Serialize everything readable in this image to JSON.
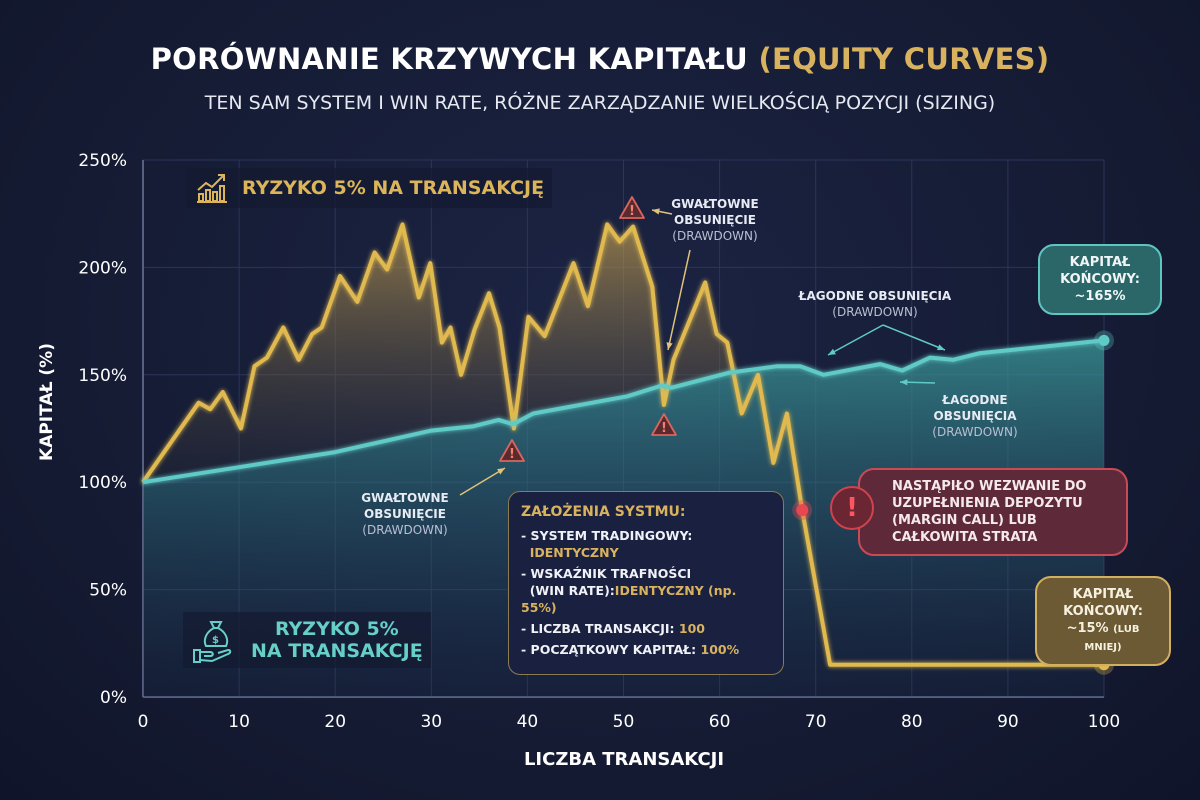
{
  "title": {
    "main": "PORÓWNANIE KRZYWYCH KAPITAŁU",
    "highlight": "(EQUITY CURVES)"
  },
  "subtitle": "TEN SAM SYSTEM I WIN RATE, RÓŻNE ZARZĄDZANIE WIELKOŚCIĄ POZYCJI (SIZING)",
  "colors": {
    "gold": "#e0b94f",
    "teal": "#5fcac6",
    "red": "#e8474f",
    "background": "#151b34"
  },
  "legend": {
    "gold": {
      "label": "RYZYKO 5% NA TRANSAKCJĘ",
      "icon": "chart-growth-icon"
    },
    "teal": {
      "line1": "RYZYKO 5%",
      "line2": "NA TRANSAKCJĘ",
      "icon": "money-bag-hand-icon"
    }
  },
  "annotations": {
    "sharp_left": {
      "l1": "GWAŁTOWNE",
      "l2": "OBSUNIĘCIE",
      "l3": "(DRAWDOWN)"
    },
    "sharp_top": {
      "l1": "GWAŁTOWNE",
      "l2": "OBSUNIĘCIE",
      "l3": "(DRAWDOWN)"
    },
    "mild_top": {
      "l1": "ŁAGODNE OBSUNIĘCIA",
      "l2": "(DRAWDOWN)"
    },
    "mild_bottom": {
      "l1": "ŁAGODNE",
      "l2": "OBSUNIĘCIA",
      "l3": "(DRAWDOWN)"
    },
    "final_teal": {
      "l1": "KAPITAŁ",
      "l2": "KOŃCOWY:",
      "l3": "~165%"
    },
    "final_gold": {
      "l1": "KAPITAŁ",
      "l2": "KOŃCOWY:",
      "l3": "~15%",
      "l3b": "(LUB MNIEJ)"
    },
    "margin_call": {
      "l1": "NASTĄPIŁO WEZWANIE DO",
      "l2": "UZUPEŁNIENIA DEPOZYTU",
      "l3": "(MARGIN CALL) LUB",
      "l4": "CAŁKOWITA STRATA"
    }
  },
  "assumptions": {
    "heading": "ZAŁOŻENIA SYSTMU:",
    "items": [
      {
        "label": "- SYSTEM TRADINGOWY:",
        "value": "IDENTYCZNY"
      },
      {
        "label": "- WSKAŹNIK TRAFNOŚCI",
        "label2": "(WIN RATE):",
        "value": "IDENTYCZNY (np. 55%)"
      },
      {
        "label": "- LICZBA TRANSAKCJI: ",
        "value": "100"
      },
      {
        "label": "- POCZĄTKOWY KAPITAŁ: ",
        "value": "100%"
      }
    ]
  },
  "chart_data": {
    "type": "line",
    "xlabel": "LICZBA TRANSAKCJI",
    "ylabel": "KAPITAŁ (%)",
    "xlim": [
      0,
      100
    ],
    "ylim": [
      0,
      250
    ],
    "xticks": [
      "0",
      "10",
      "20",
      "30",
      "40",
      "50",
      "60",
      "70",
      "80",
      "90",
      "100"
    ],
    "yticks": [
      "0%",
      "50%",
      "100%",
      "150%",
      "200%",
      "250%"
    ],
    "grid": true,
    "series": [
      {
        "key": "gold",
        "name": "RYZYKO 5% NA TRANSAKCJĘ",
        "color": "#e0b94f",
        "points": [
          [
            0,
            100
          ],
          [
            5.8,
            137
          ],
          [
            7,
            134
          ],
          [
            8.3,
            142
          ],
          [
            10.2,
            125
          ],
          [
            11.6,
            154
          ],
          [
            12.9,
            158
          ],
          [
            14.6,
            172
          ],
          [
            16.2,
            157
          ],
          [
            17.6,
            169
          ],
          [
            18.6,
            172
          ],
          [
            20.5,
            196
          ],
          [
            22.3,
            184
          ],
          [
            24.1,
            207
          ],
          [
            25.4,
            199
          ],
          [
            27,
            220
          ],
          [
            28.7,
            186
          ],
          [
            29.9,
            202
          ],
          [
            31.1,
            165
          ],
          [
            32,
            172
          ],
          [
            33.1,
            150
          ],
          [
            34.5,
            171
          ],
          [
            36,
            188
          ],
          [
            37.1,
            172
          ],
          [
            38.6,
            125
          ],
          [
            40.1,
            177
          ],
          [
            41.8,
            168
          ],
          [
            44.8,
            202
          ],
          [
            46.3,
            182
          ],
          [
            48.3,
            220
          ],
          [
            49.6,
            212
          ],
          [
            51,
            219
          ],
          [
            53,
            191
          ],
          [
            54.2,
            136
          ],
          [
            55.2,
            157
          ],
          [
            58.5,
            193
          ],
          [
            59.7,
            169
          ],
          [
            60.8,
            165
          ],
          [
            62.3,
            132
          ],
          [
            64,
            150
          ],
          [
            65.6,
            109
          ],
          [
            67,
            132
          ],
          [
            68.6,
            87
          ],
          [
            71.5,
            15
          ],
          [
            100,
            15
          ]
        ]
      },
      {
        "key": "teal",
        "name": "RYZYKO 5% NA TRANSAKCJĘ",
        "color": "#5fcac6",
        "points": [
          [
            0,
            100
          ],
          [
            10,
            107
          ],
          [
            20,
            114
          ],
          [
            30,
            124
          ],
          [
            34.3,
            126
          ],
          [
            37,
            129
          ],
          [
            38.5,
            127
          ],
          [
            40.6,
            132
          ],
          [
            50.4,
            140
          ],
          [
            54,
            145
          ],
          [
            55,
            144
          ],
          [
            61,
            151
          ],
          [
            66,
            154
          ],
          [
            68.4,
            154
          ],
          [
            70.8,
            150
          ],
          [
            76.7,
            155
          ],
          [
            79,
            152
          ],
          [
            81.9,
            158
          ],
          [
            84.3,
            157
          ],
          [
            87,
            160
          ],
          [
            100,
            166
          ]
        ]
      }
    ],
    "markers": [
      {
        "type": "warning",
        "x": 38.6
      },
      {
        "type": "warning",
        "x": 54.2
      },
      {
        "type": "warning",
        "x": 51
      },
      {
        "type": "margin-call",
        "x": 68.6,
        "y": 87
      }
    ]
  }
}
